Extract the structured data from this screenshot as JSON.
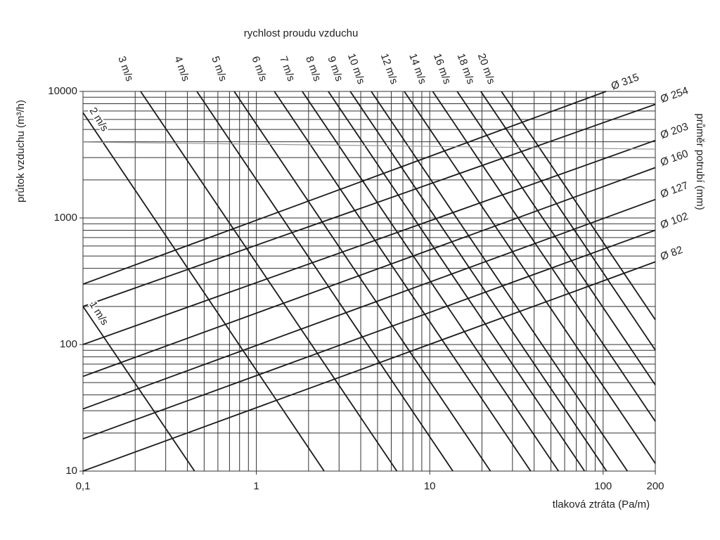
{
  "chart_data": {
    "type": "line",
    "title": "rychlost proudu vzduchu",
    "x_label": "tlaková ztráta (Pa/m)",
    "y_label": "průtok vzduchu (m³/h)",
    "y2_label": "průměr potrubí (mm)",
    "log_x": true,
    "log_y": true,
    "xlim": [
      0.1,
      200
    ],
    "ylim": [
      10,
      10000
    ],
    "xticks": [
      {
        "value": 0.1,
        "label": "0,1"
      },
      1,
      10,
      100,
      200
    ],
    "yticks": [
      10,
      100,
      1000,
      10000
    ],
    "xgrid": [
      0.1,
      0.2,
      0.3,
      0.4,
      0.5,
      0.6,
      0.7,
      0.8,
      0.9,
      1,
      2,
      3,
      4,
      5,
      6,
      7,
      8,
      9,
      10,
      20,
      30,
      40,
      50,
      60,
      70,
      80,
      90,
      100,
      200
    ],
    "ygrid": [
      10,
      20,
      30,
      40,
      50,
      60,
      70,
      80,
      90,
      100,
      200,
      300,
      400,
      500,
      600,
      700,
      800,
      900,
      1000,
      2000,
      3000,
      4000,
      5000,
      6000,
      7000,
      8000,
      9000,
      10000
    ],
    "series": [
      {
        "name": "Ø 315",
        "color": "#1a1a1a",
        "x": [
          0.1,
          104
        ],
        "values": [
          300,
          10000
        ]
      },
      {
        "name": "Ø 254",
        "color": "#1a1a1a",
        "x": [
          0.1,
          200
        ],
        "values": [
          200,
          7900
        ]
      },
      {
        "name": "Ø 203",
        "color": "#1a1a1a",
        "x": [
          0.1,
          200
        ],
        "values": [
          100,
          4100
        ]
      },
      {
        "name": "Ø 160",
        "color": "#1a1a1a",
        "x": [
          0.1,
          200
        ],
        "values": [
          56,
          2500
        ]
      },
      {
        "name": "Ø 127",
        "color": "#1a1a1a",
        "x": [
          0.1,
          200
        ],
        "values": [
          31,
          1400
        ]
      },
      {
        "name": "Ø 102",
        "color": "#1a1a1a",
        "x": [
          0.1,
          200
        ],
        "values": [
          18,
          800
        ]
      },
      {
        "name": "Ø 82",
        "color": "#1a1a1a",
        "x": [
          0.1,
          200
        ],
        "values": [
          10,
          450
        ]
      },
      {
        "name": "1 m/s",
        "color": "#1a1a1a",
        "x": [
          0.1,
          0.44
        ],
        "values": [
          200,
          10
        ]
      },
      {
        "name": "2 m/s",
        "color": "#1a1a1a",
        "x": [
          0.1,
          2.46
        ],
        "values": [
          6800,
          10
        ]
      },
      {
        "name": "3 m/s",
        "color": "#1a1a1a",
        "x": [
          0.215,
          6.46
        ],
        "values": [
          10000,
          10
        ]
      },
      {
        "name": "4 m/s",
        "color": "#1a1a1a",
        "x": [
          0.454,
          13.6
        ],
        "values": [
          10000,
          10
        ]
      },
      {
        "name": "5 m/s",
        "color": "#1a1a1a",
        "x": [
          0.745,
          22.4
        ],
        "values": [
          10000,
          10
        ]
      },
      {
        "name": "6 m/s",
        "color": "#1a1a1a",
        "x": [
          1.27,
          38.2
        ],
        "values": [
          10000,
          10
        ]
      },
      {
        "name": "7 m/s",
        "color": "#1a1a1a",
        "x": [
          1.84,
          55.3
        ],
        "values": [
          10000,
          10
        ]
      },
      {
        "name": "8 m/s",
        "color": "#1a1a1a",
        "x": [
          2.6,
          78.2
        ],
        "values": [
          10000,
          10
        ]
      },
      {
        "name": "9 m/s",
        "color": "#1a1a1a",
        "x": [
          3.48,
          104.7
        ],
        "values": [
          10000,
          10
        ]
      },
      {
        "name": "10 m/s",
        "color": "#1a1a1a",
        "x": [
          4.6,
          138
        ],
        "values": [
          10000,
          10
        ]
      },
      {
        "name": "12 m/s",
        "color": "#1a1a1a",
        "x": [
          7.13,
          200
        ],
        "values": [
          10000,
          11.5
        ]
      },
      {
        "name": "14 m/s",
        "color": "#1a1a1a",
        "x": [
          10.4,
          200
        ],
        "values": [
          10000,
          24.7
        ]
      },
      {
        "name": "16 m/s",
        "color": "#1a1a1a",
        "x": [
          14.4,
          200
        ],
        "values": [
          10000,
          47.9
        ]
      },
      {
        "name": "18 m/s",
        "color": "#1a1a1a",
        "x": [
          19.7,
          200
        ],
        "values": [
          10000,
          90.4
        ]
      },
      {
        "name": "20 m/s",
        "color": "#1a1a1a",
        "x": [
          25.9,
          200
        ],
        "values": [
          10000,
          157
        ]
      },
      {
        "color": "#999999",
        "x": [
          0.1,
          200
        ],
        "values": [
          3980,
          3500
        ]
      }
    ]
  }
}
